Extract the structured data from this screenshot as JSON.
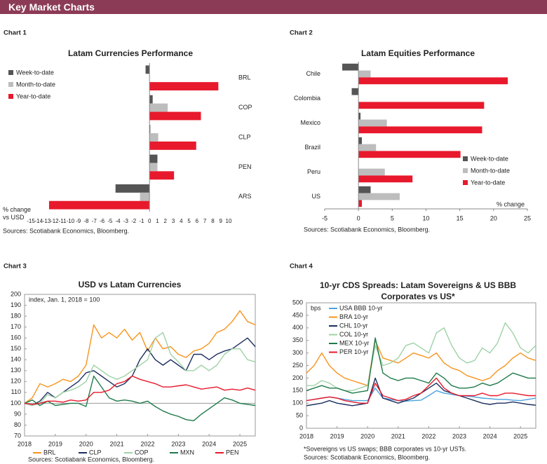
{
  "header": {
    "title": "Key Market Charts"
  },
  "chart_data": [
    {
      "type": "hbar",
      "label": "Chart 1",
      "title": "Latam Currencies Performance",
      "xlabel": "% change vs USD",
      "source": "Sources: Scotiabank Economics, Bloomberg.",
      "categories": [
        "BRL",
        "COP",
        "CLP",
        "PEN",
        "ARS"
      ],
      "series": [
        {
          "name": "Week-to-date",
          "color": "#555555",
          "values": [
            -0.5,
            0.4,
            0.1,
            1.0,
            -4.3
          ]
        },
        {
          "name": "Month-to-date",
          "color": "#bdbdbd",
          "values": [
            0,
            2.3,
            1.1,
            1.0,
            -1.2
          ]
        },
        {
          "name": "Year-to-date",
          "color": "#e8192c",
          "values": [
            8.7,
            6.5,
            5.9,
            3.1,
            -12.7
          ]
        }
      ],
      "xlim": [
        -15,
        10
      ],
      "xticks": [
        -15,
        -14,
        -13,
        -12,
        -11,
        -10,
        -9,
        -8,
        -7,
        -6,
        -5,
        -4,
        -3,
        -2,
        -1,
        0,
        1,
        2,
        3,
        4,
        5,
        6,
        7,
        8,
        9,
        10
      ],
      "legend": "upper left",
      "category_labels": "right",
      "axis_line": false
    },
    {
      "type": "hbar",
      "label": "Chart 2",
      "title": "Latam Equities Performance",
      "xlabel": "% change",
      "source": "Sources: Scotiabank Economics, Bloomberg.",
      "categories": [
        "Chile",
        "Colombia",
        "Mexico",
        "Brazil",
        "Peru",
        "US"
      ],
      "series": [
        {
          "name": "Week-to-date",
          "color": "#555555",
          "values": [
            -2.4,
            -1.0,
            0.3,
            0.5,
            0,
            1.8
          ]
        },
        {
          "name": "Month-to-date",
          "color": "#bdbdbd",
          "values": [
            1.8,
            0,
            4.2,
            2.6,
            3.9,
            6.1
          ]
        },
        {
          "name": "Year-to-date",
          "color": "#e8192c",
          "values": [
            22.1,
            18.6,
            18.3,
            15.1,
            8.0,
            0.5
          ]
        }
      ],
      "xlim": [
        -5,
        25
      ],
      "xticks": [
        -5,
        0,
        5,
        10,
        15,
        20,
        25
      ],
      "legend": "lower right",
      "category_labels": "left",
      "axis_line": true
    },
    {
      "type": "line",
      "label": "Chart 3",
      "title": "USD vs Latam Currencies",
      "annotation": "index, Jan. 1, 2018 = 100",
      "source": "Sources: Scotiabank Economics, Bloomberg.",
      "x": [
        2018,
        2018.25,
        2018.5,
        2018.75,
        2019,
        2019.25,
        2019.5,
        2019.75,
        2020,
        2020.25,
        2020.5,
        2020.75,
        2021,
        2021.25,
        2021.5,
        2021.75,
        2022,
        2022.25,
        2022.5,
        2022.75,
        2023,
        2023.25,
        2023.5,
        2023.75,
        2024,
        2024.25,
        2024.5,
        2024.75,
        2025,
        2025.25,
        2025.5
      ],
      "series": [
        {
          "name": "BRL",
          "color": "#f7941d",
          "values": [
            100,
            105,
            118,
            115,
            118,
            122,
            120,
            125,
            135,
            172,
            160,
            165,
            160,
            168,
            158,
            165,
            148,
            160,
            150,
            152,
            145,
            142,
            148,
            150,
            155,
            165,
            168,
            175,
            185,
            175,
            172
          ]
        },
        {
          "name": "CLP",
          "color": "#1c2f5e",
          "values": [
            100,
            98,
            102,
            110,
            105,
            110,
            115,
            120,
            128,
            130,
            125,
            120,
            115,
            118,
            125,
            140,
            150,
            140,
            135,
            140,
            135,
            130,
            145,
            145,
            140,
            145,
            148,
            150,
            155,
            160,
            152
          ]
        },
        {
          "name": "COP",
          "color": "#9fd2a6",
          "values": [
            100,
            98,
            100,
            108,
            105,
            110,
            112,
            115,
            120,
            135,
            130,
            125,
            122,
            125,
            130,
            135,
            140,
            160,
            165,
            145,
            138,
            130,
            130,
            135,
            130,
            135,
            145,
            150,
            150,
            140,
            138
          ]
        },
        {
          "name": "MXN",
          "color": "#1f7a4a",
          "values": [
            100,
            103,
            98,
            102,
            98,
            99,
            100,
            100,
            97,
            125,
            115,
            105,
            102,
            103,
            102,
            100,
            102,
            97,
            93,
            90,
            88,
            85,
            84,
            90,
            95,
            100,
            105,
            103,
            100,
            99,
            98
          ]
        },
        {
          "name": "PEN",
          "color": "#e8192c",
          "values": [
            100,
            99,
            100,
            102,
            102,
            101,
            103,
            102,
            103,
            110,
            110,
            112,
            118,
            120,
            125,
            122,
            120,
            118,
            115,
            115,
            116,
            117,
            115,
            113,
            114,
            115,
            112,
            113,
            112,
            114,
            112
          ]
        }
      ],
      "xlim": [
        2018,
        2025.5
      ],
      "xticks": [
        2018,
        2019,
        2020,
        2021,
        2022,
        2023,
        2024,
        2025
      ],
      "ylim": [
        70,
        200
      ],
      "yticks": [
        70,
        80,
        90,
        100,
        110,
        120,
        130,
        140,
        150,
        160,
        170,
        180,
        190,
        200
      ],
      "reference_line": 100,
      "legend": "bottom"
    },
    {
      "type": "line",
      "label": "Chart 4",
      "title": "10-yr CDS Spreads: Latam Sovereigns & US BBB Corporates vs US*",
      "ylabel": "bps",
      "note": "*Sovereigns vs US swaps; BBB corporates vs 10-yr USTs.",
      "source": "Sources: Scotiabank Economics, Bloomberg.",
      "x": [
        2018,
        2018.25,
        2018.5,
        2018.75,
        2019,
        2019.25,
        2019.5,
        2019.75,
        2020,
        2020.25,
        2020.5,
        2020.75,
        2021,
        2021.25,
        2021.5,
        2021.75,
        2022,
        2022.25,
        2022.5,
        2022.75,
        2023,
        2023.25,
        2023.5,
        2023.75,
        2024,
        2024.25,
        2024.5,
        2024.75,
        2025,
        2025.25,
        2025.5
      ],
      "series": [
        {
          "name": "USA BBB 10-yr",
          "color": "#4aa3df",
          "values": [
            110,
            115,
            120,
            125,
            120,
            115,
            110,
            110,
            110,
            160,
            120,
            115,
            110,
            108,
            110,
            112,
            130,
            150,
            140,
            135,
            130,
            128,
            125,
            120,
            118,
            115,
            115,
            112,
            110,
            115,
            120
          ]
        },
        {
          "name": "BRA 10-yr",
          "color": "#f7941d",
          "values": [
            220,
            250,
            300,
            250,
            220,
            200,
            190,
            180,
            170,
            350,
            280,
            270,
            260,
            280,
            300,
            290,
            280,
            300,
            260,
            240,
            230,
            210,
            200,
            190,
            200,
            230,
            250,
            280,
            300,
            280,
            270
          ]
        },
        {
          "name": "CHL 10-yr",
          "color": "#1c2f5e",
          "values": [
            90,
            95,
            100,
            110,
            100,
            95,
            90,
            95,
            100,
            200,
            120,
            110,
            100,
            110,
            120,
            140,
            160,
            180,
            150,
            140,
            130,
            120,
            110,
            100,
            95,
            100,
            100,
            105,
            100,
            95,
            92
          ]
        },
        {
          "name": "COL 10-yr",
          "color": "#9fd2a6",
          "values": [
            170,
            170,
            190,
            180,
            160,
            150,
            150,
            160,
            170,
            330,
            250,
            260,
            280,
            330,
            340,
            320,
            300,
            380,
            400,
            330,
            280,
            260,
            270,
            320,
            300,
            340,
            420,
            380,
            320,
            300,
            330
          ]
        },
        {
          "name": "MEX 10-yr",
          "color": "#1f7a4a",
          "values": [
            150,
            160,
            170,
            160,
            160,
            150,
            140,
            145,
            150,
            360,
            220,
            200,
            190,
            200,
            200,
            190,
            180,
            220,
            200,
            170,
            160,
            160,
            165,
            180,
            170,
            180,
            200,
            220,
            210,
            200,
            200
          ]
        },
        {
          "name": "PER 10-yr",
          "color": "#e8192c",
          "values": [
            110,
            115,
            120,
            125,
            120,
            110,
            105,
            100,
            100,
            180,
            130,
            120,
            110,
            115,
            130,
            140,
            170,
            200,
            160,
            140,
            130,
            130,
            130,
            140,
            130,
            130,
            140,
            140,
            135,
            130,
            130
          ]
        }
      ],
      "xlim": [
        2018,
        2025.5
      ],
      "xticks": [
        2018,
        2019,
        2020,
        2021,
        2022,
        2023,
        2024,
        2025
      ],
      "ylim": [
        0,
        500
      ],
      "yticks": [
        0,
        50,
        100,
        150,
        200,
        250,
        300,
        350,
        400,
        450,
        500
      ],
      "legend": "upper left"
    }
  ]
}
